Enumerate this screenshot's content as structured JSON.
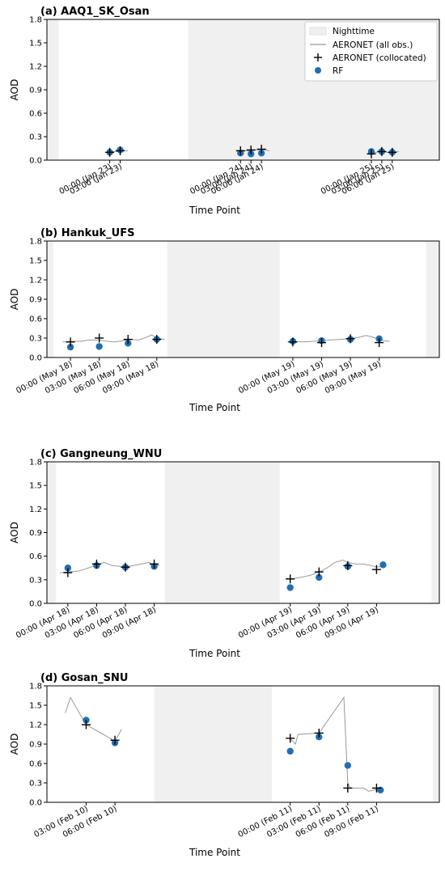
{
  "legend": {
    "nighttime": "Nighttime",
    "all_obs": "AERONET (all obs.)",
    "collocated": "AERONET (collocated)",
    "rf": "RF"
  },
  "colors": {
    "night": "#f0f0f0",
    "line": "#999999",
    "rf": "#1f6fb4",
    "cross": "#000000"
  },
  "chart_data": [
    {
      "type": "scatter",
      "title": "(a) AAQ1_SK_Osan",
      "xlabel": "Time Point",
      "ylabel": "AOD",
      "ylim": [
        0,
        1.8
      ],
      "yticks": [
        0.0,
        0.3,
        0.6,
        0.9,
        1.2,
        1.5,
        1.8
      ],
      "yticklabels": [
        "0.0",
        "0.3",
        "0.6",
        "0.9",
        "1.2",
        "1.5",
        "1.8"
      ],
      "xlim": [
        0,
        3
      ],
      "xticks": [
        0.48,
        0.56,
        1.48,
        1.56,
        1.64,
        2.48,
        2.56,
        2.64
      ],
      "xticklabels": [
        "00:00 (Jan 23)",
        "03:00 (Jan 23)",
        "00:00 (Jan 24)",
        "03:00 (Jan 24)",
        "06:00 (Jan 24)",
        "00:00 (Jan 25)",
        "03:00 (Jan 25)",
        "06:00 (Jan 25)"
      ],
      "night": [
        [
          0,
          0.09
        ],
        [
          1.08,
          2.09
        ],
        [
          2.08,
          3
        ]
      ],
      "segments": [
        [
          [
            0.46,
            0.1
          ],
          [
            0.5,
            0.11
          ],
          [
            0.54,
            0.11
          ],
          [
            0.58,
            0.12
          ],
          [
            0.62,
            0.12
          ]
        ],
        [
          [
            1.47,
            0.1
          ],
          [
            1.52,
            0.12
          ],
          [
            1.56,
            0.12
          ],
          [
            1.6,
            0.13
          ],
          [
            1.64,
            0.14
          ],
          [
            1.7,
            0.12
          ]
        ],
        [
          [
            2.47,
            0.09
          ],
          [
            2.52,
            0.1
          ],
          [
            2.56,
            0.11
          ],
          [
            2.6,
            0.1
          ],
          [
            2.64,
            0.1
          ],
          [
            2.69,
            0.11
          ]
        ]
      ],
      "collocated": [
        [
          0.48,
          0.1
        ],
        [
          0.56,
          0.12
        ],
        [
          1.48,
          0.12
        ],
        [
          1.56,
          0.13
        ],
        [
          1.64,
          0.14
        ],
        [
          2.48,
          0.08
        ],
        [
          2.56,
          0.11
        ],
        [
          2.64,
          0.1
        ]
      ],
      "rf": [
        [
          0.48,
          0.1
        ],
        [
          0.56,
          0.13
        ],
        [
          1.48,
          0.09
        ],
        [
          1.56,
          0.08
        ],
        [
          1.64,
          0.09
        ],
        [
          2.48,
          0.11
        ],
        [
          2.56,
          0.11
        ],
        [
          2.64,
          0.1
        ]
      ],
      "legend_box": true
    },
    {
      "type": "scatter",
      "title": "(b) Hankuk_UFS",
      "xlabel": "Time Point",
      "ylabel": "AOD",
      "ylim": [
        0,
        1.8
      ],
      "yticks": [
        0.0,
        0.3,
        0.6,
        0.9,
        1.2,
        1.5,
        1.8
      ],
      "yticklabels": [
        "0.0",
        "0.3",
        "0.6",
        "0.9",
        "1.2",
        "1.5",
        "1.8"
      ],
      "xlim": [
        0,
        3
      ],
      "xticks": [
        0.18,
        0.4,
        0.62,
        0.84,
        1.88,
        2.1,
        2.32,
        2.54
      ],
      "xticklabels": [
        "00:00 (May 18)",
        "03:00 (May 18)",
        "06:00 (May 18)",
        "09:00 (May 18)",
        "00:00 (May 19)",
        "03:00 (May 19)",
        "06:00 (May 19)",
        "09:00 (May 19)"
      ],
      "night": [
        [
          0,
          0.05
        ],
        [
          0.92,
          1.78
        ],
        [
          2.9,
          3
        ]
      ],
      "segments": [
        [
          [
            0.12,
            0.24
          ],
          [
            0.18,
            0.25
          ],
          [
            0.26,
            0.25
          ],
          [
            0.32,
            0.27
          ],
          [
            0.4,
            0.27
          ],
          [
            0.46,
            0.25
          ],
          [
            0.52,
            0.24
          ],
          [
            0.58,
            0.26
          ],
          [
            0.62,
            0.28
          ],
          [
            0.7,
            0.27
          ],
          [
            0.76,
            0.31
          ],
          [
            0.8,
            0.35
          ],
          [
            0.84,
            0.3
          ],
          [
            0.9,
            0.28
          ]
        ],
        [
          [
            1.84,
            0.24
          ],
          [
            1.88,
            0.25
          ],
          [
            1.96,
            0.24
          ],
          [
            2.04,
            0.25
          ],
          [
            2.1,
            0.26
          ],
          [
            2.16,
            0.27
          ],
          [
            2.24,
            0.28
          ],
          [
            2.32,
            0.29
          ],
          [
            2.38,
            0.31
          ],
          [
            2.44,
            0.34
          ],
          [
            2.48,
            0.32
          ],
          [
            2.54,
            0.28
          ],
          [
            2.58,
            0.26
          ],
          [
            2.62,
            0.25
          ]
        ]
      ],
      "collocated": [
        [
          0.18,
          0.24
        ],
        [
          0.4,
          0.3
        ],
        [
          0.62,
          0.28
        ],
        [
          0.84,
          0.28
        ],
        [
          1.88,
          0.24
        ],
        [
          2.1,
          0.23
        ],
        [
          2.32,
          0.29
        ],
        [
          2.54,
          0.23
        ]
      ],
      "rf": [
        [
          0.18,
          0.16
        ],
        [
          0.4,
          0.17
        ],
        [
          0.62,
          0.22
        ],
        [
          0.84,
          0.28
        ],
        [
          1.88,
          0.25
        ],
        [
          2.1,
          0.26
        ],
        [
          2.32,
          0.28
        ],
        [
          2.54,
          0.29
        ]
      ],
      "legend_box": false
    },
    {
      "type": "scatter",
      "title": "(c) Gangneung_WNU",
      "xlabel": "Time Point",
      "ylabel": "AOD",
      "ylim": [
        0,
        1.8
      ],
      "yticks": [
        0.0,
        0.3,
        0.6,
        0.9,
        1.2,
        1.5,
        1.8
      ],
      "yticklabels": [
        "0.0",
        "0.3",
        "0.6",
        "0.9",
        "1.2",
        "1.5",
        "1.8"
      ],
      "xlim": [
        0,
        3
      ],
      "xticks": [
        0.16,
        0.38,
        0.6,
        0.82,
        1.86,
        2.08,
        2.3,
        2.52
      ],
      "xticklabels": [
        "00:00 (Apr 18)",
        "03:00 (Apr 18)",
        "06:00 (Apr 18)",
        "09:00 (Apr 18)",
        "00:00 (Apr 19)",
        "03:00 (Apr 19)",
        "06:00 (Apr 19)",
        "09:00 (Apr 19)"
      ],
      "night": [
        [
          0,
          0.07
        ],
        [
          0.9,
          1.78
        ],
        [
          2.94,
          3
        ]
      ],
      "segments": [
        [
          [
            0.1,
            0.39
          ],
          [
            0.16,
            0.4
          ],
          [
            0.24,
            0.41
          ],
          [
            0.3,
            0.44
          ],
          [
            0.38,
            0.49
          ],
          [
            0.44,
            0.52
          ],
          [
            0.5,
            0.48
          ],
          [
            0.56,
            0.47
          ],
          [
            0.6,
            0.46
          ],
          [
            0.66,
            0.48
          ],
          [
            0.72,
            0.5
          ],
          [
            0.78,
            0.52
          ],
          [
            0.82,
            0.49
          ],
          [
            0.86,
            0.48
          ]
        ],
        [
          [
            1.83,
            0.32
          ],
          [
            1.86,
            0.31
          ],
          [
            1.94,
            0.33
          ],
          [
            2.02,
            0.36
          ],
          [
            2.08,
            0.4
          ],
          [
            2.14,
            0.45
          ],
          [
            2.2,
            0.52
          ],
          [
            2.26,
            0.55
          ],
          [
            2.3,
            0.52
          ],
          [
            2.36,
            0.5
          ],
          [
            2.42,
            0.5
          ],
          [
            2.48,
            0.48
          ],
          [
            2.52,
            0.46
          ],
          [
            2.56,
            0.47
          ]
        ]
      ],
      "collocated": [
        [
          0.16,
          0.39
        ],
        [
          0.38,
          0.5
        ],
        [
          0.6,
          0.46
        ],
        [
          0.82,
          0.5
        ],
        [
          1.86,
          0.31
        ],
        [
          2.08,
          0.4
        ],
        [
          2.3,
          0.48
        ],
        [
          2.52,
          0.43
        ]
      ],
      "rf": [
        [
          0.16,
          0.45
        ],
        [
          0.38,
          0.48
        ],
        [
          0.6,
          0.46
        ],
        [
          0.82,
          0.47
        ],
        [
          1.86,
          0.2
        ],
        [
          2.08,
          0.33
        ],
        [
          2.3,
          0.47
        ],
        [
          2.57,
          0.49
        ]
      ],
      "legend_box": false
    },
    {
      "type": "scatter",
      "title": "(d) Gosan_SNU",
      "xlabel": "Time Point",
      "ylabel": "AOD",
      "ylim": [
        0,
        1.8
      ],
      "yticks": [
        0.0,
        0.3,
        0.6,
        0.9,
        1.2,
        1.5,
        1.8
      ],
      "yticklabels": [
        "0.0",
        "0.3",
        "0.6",
        "0.9",
        "1.2",
        "1.5",
        "1.8"
      ],
      "xlim": [
        0,
        3
      ],
      "xticks": [
        0.3,
        0.52,
        1.86,
        2.08,
        2.3,
        2.52
      ],
      "xticklabels": [
        "03:00 (Feb 10)",
        "06:00 (Feb 10)",
        "00:00 (Feb 11)",
        "03:00 (Feb 11)",
        "06:00 (Feb 11)",
        "09:00 (Feb 11)"
      ],
      "night": [
        [
          0.82,
          1.72
        ],
        [
          2.95,
          3
        ]
      ],
      "segments": [
        [
          [
            0.14,
            1.38
          ],
          [
            0.18,
            1.62
          ],
          [
            0.3,
            1.2
          ],
          [
            0.5,
            0.97
          ],
          [
            0.52,
            0.95
          ],
          [
            0.55,
            1.05
          ],
          [
            0.57,
            1.13
          ]
        ],
        [
          [
            1.86,
            0.98
          ],
          [
            1.9,
            0.9
          ],
          [
            1.92,
            1.05
          ],
          [
            2.08,
            1.07
          ],
          [
            2.27,
            1.62
          ],
          [
            2.3,
            0.3
          ],
          [
            2.32,
            0.22
          ],
          [
            2.42,
            0.22
          ],
          [
            2.46,
            0.17
          ],
          [
            2.52,
            0.2
          ],
          [
            2.55,
            0.19
          ]
        ]
      ],
      "collocated": [
        [
          0.3,
          1.2
        ],
        [
          0.52,
          0.96
        ],
        [
          1.86,
          0.99
        ],
        [
          2.08,
          1.07
        ],
        [
          2.3,
          0.22
        ],
        [
          2.52,
          0.22
        ]
      ],
      "rf": [
        [
          0.3,
          1.27
        ],
        [
          0.52,
          0.92
        ],
        [
          1.86,
          0.79
        ],
        [
          2.08,
          1.01
        ],
        [
          2.3,
          0.57
        ],
        [
          2.55,
          0.19
        ]
      ],
      "legend_box": false
    }
  ]
}
